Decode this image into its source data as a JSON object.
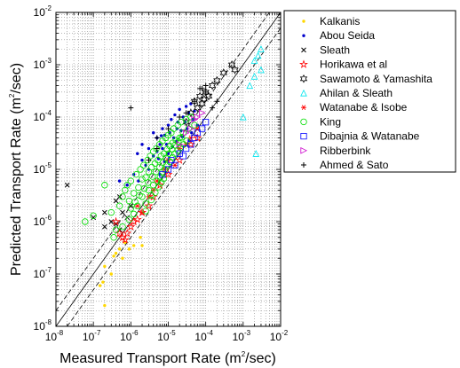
{
  "chart_data": {
    "type": "scatter",
    "title": "",
    "xlabel_main": "Measured Transport Rate (m",
    "xlabel_sup": "2",
    "xlabel_tail": "/sec)",
    "ylabel_main": "Predicted Transport Rate (m",
    "ylabel_sup": "2",
    "ylabel_tail": "/sec)",
    "xscale": "log",
    "yscale": "log",
    "xlim": [
      1e-08,
      0.01
    ],
    "ylim": [
      1e-08,
      0.01
    ],
    "grid": true,
    "legend_position": "outside-right-top",
    "tick_base": "10",
    "tick_exponents": [
      -8,
      -7,
      -6,
      -5,
      -4,
      -3,
      -2
    ],
    "reference_lines": [
      {
        "kind": "perfect-agreement",
        "factor": 1,
        "style": "solid",
        "color": "#000000"
      },
      {
        "kind": "factor-band",
        "factor": 2,
        "style": "dashed",
        "color": "#000000"
      },
      {
        "kind": "factor-band",
        "factor": 0.5,
        "style": "dashed",
        "color": "#000000"
      }
    ],
    "series": [
      {
        "name": "Kalkanis",
        "marker": "dot",
        "color": "#ffd700",
        "points": [
          [
            2e-07,
            2.5e-08
          ],
          [
            1.5e-07,
            6e-08
          ],
          [
            1.8e-07,
            7e-08
          ],
          [
            2e-07,
            1.4e-07
          ],
          [
            3e-07,
            1e-07
          ],
          [
            3.5e-07,
            2.2e-07
          ],
          [
            4e-07,
            2.5e-07
          ],
          [
            5e-07,
            3e-07
          ],
          [
            6e-07,
            2e-07
          ],
          [
            7e-07,
            4e-07
          ],
          [
            9e-07,
            3e-07
          ],
          [
            1.2e-06,
            3.5e-07
          ],
          [
            1.8e-06,
            5e-07
          ],
          [
            2e-06,
            3.5e-07
          ]
        ]
      },
      {
        "name": "Abou Seida",
        "marker": "dot",
        "color": "#0000cc",
        "points": [
          [
            5e-07,
            6e-06
          ],
          [
            1.5e-06,
            2e-05
          ],
          [
            2e-06,
            3e-05
          ],
          [
            3e-06,
            2.5e-05
          ],
          [
            4e-06,
            5e-05
          ],
          [
            5e-06,
            4e-05
          ],
          [
            6e-06,
            3e-05
          ],
          [
            7e-06,
            6e-05
          ],
          [
            8e-06,
            4.5e-05
          ],
          [
            1e-05,
            7e-05
          ],
          [
            1.2e-05,
            9e-05
          ],
          [
            1.5e-05,
            0.00011
          ],
          [
            1.8e-05,
            8e-05
          ],
          [
            2e-05,
            0.00014
          ],
          [
            2.5e-05,
            0.0001
          ],
          [
            3e-05,
            0.00016
          ],
          [
            3.5e-05,
            0.00012
          ],
          [
            4e-05,
            0.00018
          ],
          [
            5e-05,
            0.00013
          ],
          [
            6e-05,
            7e-05
          ],
          [
            2e-06,
            1.5e-05
          ],
          [
            3e-06,
            1e-05
          ],
          [
            4e-06,
            1.8e-05
          ],
          [
            5e-06,
            2.2e-05
          ],
          [
            7e-06,
            2.5e-05
          ],
          [
            9e-06,
            3e-05
          ],
          [
            1.1e-05,
            5e-05
          ],
          [
            1.4e-05,
            4e-05
          ],
          [
            1.7e-05,
            6e-05
          ],
          [
            2.2e-05,
            5.5e-05
          ],
          [
            2.8e-05,
            8e-05
          ],
          [
            3.2e-05,
            6e-05
          ],
          [
            4.5e-05,
            9e-05
          ],
          [
            8e-07,
            5e-06
          ],
          [
            1.2e-06,
            8e-06
          ],
          [
            1.6e-06,
            6e-06
          ],
          [
            2.5e-06,
            1.2e-05
          ],
          [
            6e-06,
            8e-06
          ],
          [
            8e-06,
            1.4e-05
          ],
          [
            1e-05,
            2e-05
          ],
          [
            1.3e-05,
            2.7e-05
          ],
          [
            5.5e-06,
            1.6e-05
          ],
          [
            6.5e-06,
            4.4e-05
          ],
          [
            1.6e-05,
            3.4e-05
          ],
          [
            2.4e-05,
            4.2e-05
          ],
          [
            3.6e-05,
            3.6e-05
          ],
          [
            4.2e-05,
            5e-05
          ]
        ]
      },
      {
        "name": "Sleath",
        "marker": "x",
        "color": "#000000",
        "points": [
          [
            2e-08,
            5e-06
          ],
          [
            1e-07,
            1.2e-06
          ],
          [
            2e-07,
            8e-07
          ],
          [
            3e-07,
            1e-06
          ],
          [
            4e-07,
            9e-07
          ],
          [
            5e-07,
            7e-07
          ],
          [
            6e-07,
            1.5e-06
          ],
          [
            8e-07,
            1.2e-06
          ],
          [
            1e-06,
            2e-06
          ],
          [
            2e-07,
            1.5e-06
          ],
          [
            4e-07,
            2.5e-06
          ],
          [
            5e-07,
            3e-06
          ]
        ]
      },
      {
        "name": "Horikawa et al",
        "marker": "star",
        "color": "#ff0000",
        "points": [
          [
            4e-07,
            1e-06
          ],
          [
            5e-07,
            6e-07
          ],
          [
            6e-07,
            5e-07
          ],
          [
            7e-07,
            4.5e-07
          ],
          [
            8e-07,
            6e-07
          ],
          [
            1e-06,
            8e-07
          ],
          [
            1.2e-06,
            1e-06
          ],
          [
            1.5e-06,
            1.1e-06
          ],
          [
            2e-06,
            1.5e-06
          ],
          [
            3e-06,
            2e-06
          ],
          [
            4e-06,
            3e-06
          ],
          [
            6e-06,
            5e-06
          ],
          [
            1e-05,
            8e-06
          ],
          [
            2e-05,
            1.5e-05
          ],
          [
            4e-05,
            3e-05
          ],
          [
            6e-05,
            4e-05
          ]
        ]
      },
      {
        "name": "Sawamoto & Yamashita",
        "marker": "hexagram",
        "color": "#000000",
        "points": [
          [
            5e-05,
            0.0002
          ],
          [
            6e-05,
            0.00015
          ],
          [
            7e-05,
            0.00025
          ],
          [
            8e-05,
            0.00018
          ],
          [
            9e-05,
            0.00022
          ],
          [
            0.0001,
            0.0003
          ],
          [
            0.00012,
            0.00025
          ],
          [
            0.00015,
            0.0004
          ],
          [
            0.0002,
            0.0005
          ],
          [
            0.0003,
            0.0007
          ],
          [
            0.0005,
            0.001
          ],
          [
            0.0006,
            0.0008
          ],
          [
            3e-05,
            8e-05
          ],
          [
            4e-05,
            0.00012
          ]
        ]
      },
      {
        "name": "Ahilan & Sleath",
        "marker": "triangle-up",
        "color": "#00e5ee",
        "points": [
          [
            0.001,
            0.0001
          ],
          [
            0.0015,
            0.0004
          ],
          [
            0.002,
            0.0006
          ],
          [
            0.002,
            0.0012
          ],
          [
            0.0025,
            0.0015
          ],
          [
            0.003,
            0.002
          ],
          [
            0.003,
            0.0008
          ],
          [
            0.0022,
            2e-05
          ]
        ]
      },
      {
        "name": "Watanabe & Isobe",
        "marker": "asterisk",
        "color": "#ff0000",
        "points": [
          [
            1.5e-06,
            2e-06
          ],
          [
            2e-06,
            1.5e-06
          ],
          [
            3e-06,
            3e-06
          ],
          [
            4e-06,
            4e-06
          ],
          [
            5e-06,
            6e-06
          ],
          [
            8e-06,
            1e-05
          ],
          [
            1e-05,
            1.5e-05
          ],
          [
            1.5e-05,
            1.2e-05
          ],
          [
            2e-05,
            2.5e-05
          ],
          [
            3e-05,
            3e-05
          ],
          [
            4e-05,
            4e-05
          ],
          [
            6e-05,
            6e-05
          ]
        ]
      },
      {
        "name": "King",
        "marker": "circle",
        "color": "#00dd00",
        "points": [
          [
            6e-08,
            1e-06
          ],
          [
            1e-07,
            1.3e-06
          ],
          [
            2e-07,
            5e-06
          ],
          [
            3e-07,
            1.5e-06
          ],
          [
            4e-07,
            7e-07
          ],
          [
            5e-07,
            2e-06
          ],
          [
            6e-07,
            3e-06
          ],
          [
            7e-07,
            4e-06
          ],
          [
            8e-07,
            5e-06
          ],
          [
            9e-07,
            2.5e-06
          ],
          [
            1e-06,
            6e-06
          ],
          [
            1.2e-06,
            3.5e-06
          ],
          [
            1.4e-06,
            8e-06
          ],
          [
            1.6e-06,
            4.5e-06
          ],
          [
            1.8e-06,
            1e-05
          ],
          [
            2e-06,
            6.5e-06
          ],
          [
            2.2e-06,
            1.2e-05
          ],
          [
            2.5e-06,
            7e-06
          ],
          [
            2.8e-06,
            1.5e-05
          ],
          [
            3e-06,
            9e-06
          ],
          [
            3.3e-06,
            1.8e-05
          ],
          [
            3.6e-06,
            1.1e-05
          ],
          [
            4e-06,
            2.2e-05
          ],
          [
            4.4e-06,
            1.3e-05
          ],
          [
            4.8e-06,
            2.5e-05
          ],
          [
            5.3e-06,
            1.5e-05
          ],
          [
            5.8e-06,
            3e-05
          ],
          [
            6.4e-06,
            1.8e-05
          ],
          [
            7e-06,
            3.5e-05
          ],
          [
            7.7e-06,
            2e-05
          ],
          [
            8.5e-06,
            4e-05
          ],
          [
            9.3e-06,
            2.4e-05
          ],
          [
            1e-05,
            4.5e-05
          ],
          [
            1.1e-05,
            2.8e-05
          ],
          [
            1.2e-05,
            5e-05
          ],
          [
            1.3e-05,
            3.2e-05
          ],
          [
            1.4e-05,
            6e-05
          ],
          [
            1.6e-05,
            3.6e-05
          ],
          [
            1.8e-05,
            7e-05
          ],
          [
            2e-05,
            4e-05
          ],
          [
            2.2e-05,
            8e-05
          ],
          [
            2.5e-05,
            5e-05
          ],
          [
            3e-05,
            9e-05
          ],
          [
            3.5e-05,
            6e-05
          ],
          [
            4e-05,
            0.0001
          ],
          [
            5e-05,
            7e-05
          ],
          [
            1.5e-06,
            2e-06
          ],
          [
            2e-06,
            3e-06
          ],
          [
            2.5e-06,
            2.2e-06
          ],
          [
            3e-06,
            4e-06
          ],
          [
            3.5e-06,
            3.2e-06
          ],
          [
            4e-06,
            5e-06
          ],
          [
            5e-06,
            6e-06
          ],
          [
            6e-06,
            7e-06
          ],
          [
            7e-06,
            9e-06
          ],
          [
            8e-06,
            1e-05
          ],
          [
            9e-06,
            1.2e-05
          ],
          [
            1.1e-05,
            1.4e-05
          ],
          [
            1.3e-05,
            1.7e-05
          ],
          [
            1.5e-05,
            2e-05
          ],
          [
            1.8e-05,
            2.3e-05
          ],
          [
            2.1e-05,
            2.6e-05
          ],
          [
            2.6e-05,
            3e-05
          ],
          [
            3.1e-05,
            3.5e-05
          ],
          [
            1.2e-06,
            1.4e-06
          ],
          [
            9e-07,
            1.1e-06
          ],
          [
            6e-07,
            8e-07
          ],
          [
            3.5e-07,
            5e-07
          ],
          [
            2.5e-06,
            1.6e-06
          ],
          [
            3.5e-06,
            2.6e-06
          ],
          [
            4.5e-06,
            3.6e-06
          ],
          [
            5.5e-06,
            4.6e-06
          ],
          [
            6.5e-06,
            5.6e-06
          ],
          [
            7.5e-06,
            6.6e-06
          ],
          [
            1e-06,
            1.8e-06
          ],
          [
            1.3e-06,
            2.4e-06
          ],
          [
            1.7e-06,
            3.2e-06
          ],
          [
            2.3e-06,
            4.3e-06
          ],
          [
            2.9e-06,
            5.6e-06
          ],
          [
            3.8e-06,
            7.3e-06
          ],
          [
            4.7e-06,
            9e-06
          ],
          [
            5.9e-06,
            1.1e-05
          ],
          [
            7.2e-06,
            1.35e-05
          ],
          [
            8.8e-06,
            1.65e-05
          ],
          [
            1.05e-05,
            2e-05
          ],
          [
            1.25e-05,
            2.4e-05
          ],
          [
            1.5e-05,
            2.9e-05
          ],
          [
            1.85e-05,
            3.4e-05
          ],
          [
            2.3e-05,
            4.1e-05
          ]
        ]
      },
      {
        "name": "Dibajnia & Watanabe",
        "marker": "square",
        "color": "#0000ff",
        "points": [
          [
            1e-05,
            1e-05
          ],
          [
            1.5e-05,
            1.2e-05
          ],
          [
            2e-05,
            2e-05
          ],
          [
            2.5e-05,
            1.8e-05
          ],
          [
            3e-05,
            2.5e-05
          ],
          [
            4e-05,
            3e-05
          ],
          [
            5e-05,
            4e-05
          ],
          [
            6e-05,
            5e-05
          ],
          [
            8e-05,
            6e-05
          ],
          [
            0.0001,
            8e-05
          ],
          [
            7e-06,
            8e-06
          ],
          [
            1.2e-05,
            1.5e-05
          ]
        ]
      },
      {
        "name": "Ribberbink",
        "marker": "triangle-right",
        "color": "#cc00cc",
        "points": [
          [
            2e-05,
            3e-05
          ],
          [
            3e-05,
            5e-05
          ],
          [
            4e-05,
            6e-05
          ],
          [
            5e-05,
            9e-05
          ],
          [
            6e-05,
            0.0001
          ],
          [
            8e-05,
            0.00012
          ]
        ]
      },
      {
        "name": "Ahmed & Sato",
        "marker": "plus",
        "color": "#000000",
        "points": [
          [
            1e-06,
            0.00015
          ],
          [
            5e-06,
            4e-05
          ],
          [
            1e-05,
            6e-05
          ],
          [
            2e-05,
            0.0001
          ],
          [
            3e-05,
            0.00012
          ],
          [
            5e-05,
            0.0002
          ],
          [
            7e-05,
            0.00035
          ],
          [
            8e-05,
            0.00035
          ],
          [
            0.0001,
            0.0003
          ],
          [
            0.0001,
            0.0004
          ],
          [
            0.00015,
            0.00015
          ],
          [
            0.0002,
            0.0002
          ],
          [
            3e-06,
            1.5e-05
          ],
          [
            5e-06,
            2.5e-05
          ]
        ]
      }
    ]
  }
}
